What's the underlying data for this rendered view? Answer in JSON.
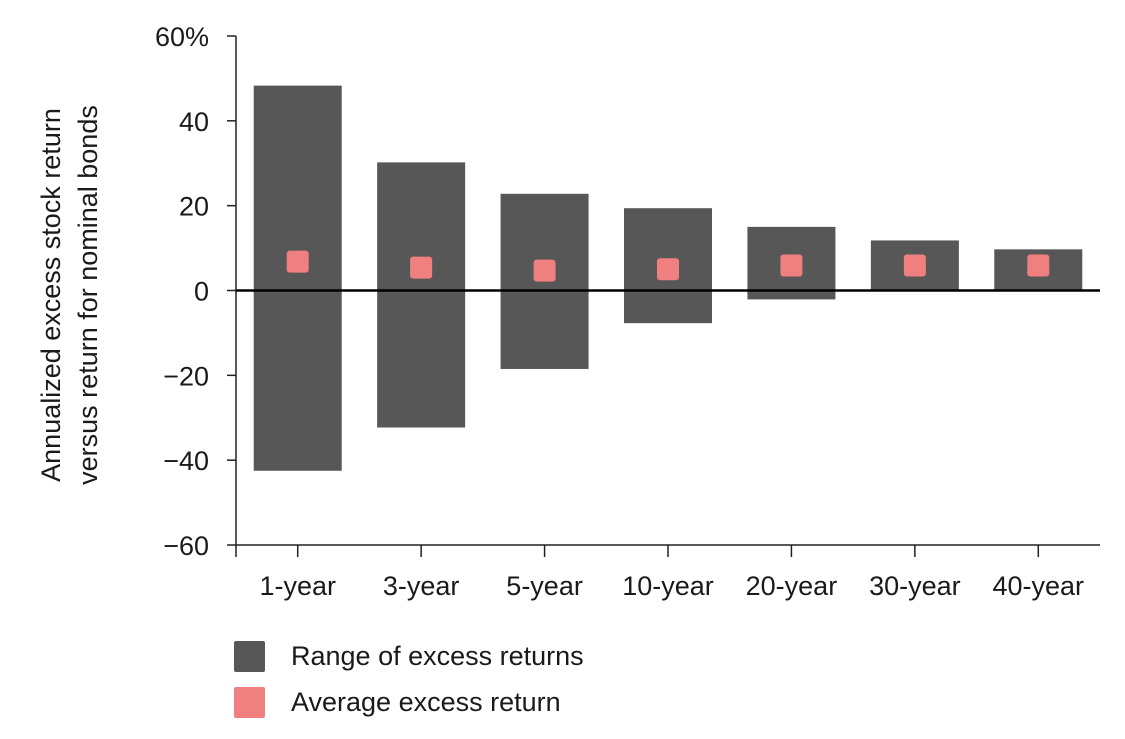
{
  "chart_data": {
    "type": "bar",
    "subtype": "floating-range-with-average-marker",
    "title": "",
    "xlabel": "",
    "ylabel_lines": [
      "Annualized excess stock return",
      "versus return for nominal bonds"
    ],
    "ylim": [
      -60,
      60
    ],
    "yticks": [
      60,
      40,
      20,
      0,
      -20,
      -40,
      -60
    ],
    "ytick_labels": [
      "60%",
      "40",
      "20",
      "0",
      "−20",
      "−40",
      "−60"
    ],
    "categories": [
      "1-year",
      "3-year",
      "5-year",
      "10-year",
      "20-year",
      "30-year",
      "40-year"
    ],
    "series": [
      {
        "name": "Range of excess returns",
        "color": "#575757",
        "low": [
          -42.5,
          -32.3,
          -18.5,
          -7.7,
          -2.1,
          0.0,
          0.0
        ],
        "high": [
          48.3,
          30.2,
          22.8,
          19.4,
          15.0,
          11.8,
          9.7
        ]
      },
      {
        "name": "Average excess return",
        "color": "#f08080",
        "values": [
          6.8,
          5.4,
          4.7,
          5.0,
          5.9,
          5.9,
          5.9
        ]
      }
    ],
    "grid": false,
    "legend_position": "bottom-left"
  }
}
